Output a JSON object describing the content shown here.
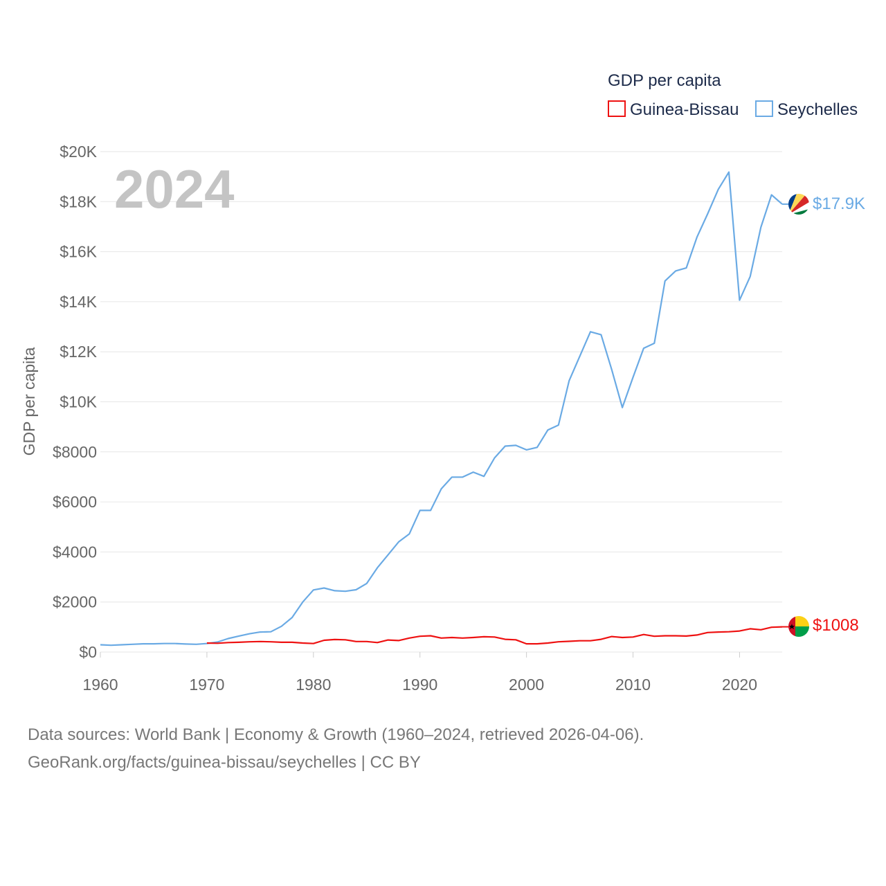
{
  "chart_data": {
    "type": "line",
    "year_display": "2024",
    "legend_title": "GDP per capita",
    "ylabel": "GDP per capita",
    "xlabel": "",
    "xlim": [
      1960,
      2024
    ],
    "ylim": [
      0,
      20000
    ],
    "x_ticks": [
      1960,
      1970,
      1980,
      1990,
      2000,
      2010,
      2020
    ],
    "x_tick_labels": [
      "1960",
      "1970",
      "1980",
      "1990",
      "2000",
      "2010",
      "2020"
    ],
    "y_ticks": [
      0,
      2000,
      4000,
      6000,
      8000,
      10000,
      12000,
      14000,
      16000,
      18000,
      20000
    ],
    "y_tick_labels": [
      "$0",
      "$2000",
      "$4000",
      "$6000",
      "$8000",
      "$10K",
      "$12K",
      "$14K",
      "$16K",
      "$18K",
      "$20K"
    ],
    "grid": true,
    "legend_position": "top-right",
    "x": [
      1960,
      1961,
      1962,
      1963,
      1964,
      1965,
      1966,
      1967,
      1968,
      1969,
      1970,
      1971,
      1972,
      1973,
      1974,
      1975,
      1976,
      1977,
      1978,
      1979,
      1980,
      1981,
      1982,
      1983,
      1984,
      1985,
      1986,
      1987,
      1988,
      1989,
      1990,
      1991,
      1992,
      1993,
      1994,
      1995,
      1996,
      1997,
      1998,
      1999,
      2000,
      2001,
      2002,
      2003,
      2004,
      2005,
      2006,
      2007,
      2008,
      2009,
      2010,
      2011,
      2012,
      2013,
      2014,
      2015,
      2016,
      2017,
      2018,
      2019,
      2020,
      2021,
      2022,
      2023,
      2024
    ],
    "series": [
      {
        "name": "Seychelles",
        "color": "#6aaae4",
        "end_label": "$17.9K",
        "flag": "seychelles",
        "values": [
          290,
          270,
          290,
          310,
          330,
          330,
          340,
          340,
          320,
          310,
          340,
          400,
          540,
          640,
          730,
          800,
          810,
          1030,
          1380,
          2000,
          2480,
          2560,
          2450,
          2430,
          2490,
          2740,
          3370,
          3880,
          4400,
          4720,
          5660,
          5660,
          6520,
          6990,
          6990,
          7190,
          7020,
          7760,
          8230,
          8260,
          8080,
          8180,
          8870,
          9070,
          10840,
          11820,
          12800,
          12680,
          11280,
          9770,
          10980,
          12140,
          12340,
          14830,
          15230,
          15350,
          16580,
          17510,
          18490,
          19180,
          14060,
          15010,
          16970,
          18270,
          17900
        ]
      },
      {
        "name": "Guinea-Bissau",
        "color": "#ee1111",
        "end_label": "$1008",
        "flag": "guinea-bissau",
        "values": [
          null,
          null,
          null,
          null,
          null,
          null,
          null,
          null,
          null,
          null,
          360,
          350,
          380,
          390,
          410,
          420,
          410,
          390,
          390,
          360,
          340,
          470,
          500,
          490,
          420,
          420,
          380,
          480,
          460,
          560,
          630,
          650,
          560,
          580,
          560,
          580,
          610,
          600,
          510,
          490,
          330,
          330,
          360,
          410,
          430,
          450,
          450,
          510,
          620,
          580,
          600,
          700,
          630,
          650,
          650,
          640,
          680,
          780,
          800,
          810,
          840,
          930,
          890,
          990,
          1008
        ]
      }
    ]
  },
  "footer": {
    "line1": "Data sources: World Bank | Economy & Growth (1960–2024, retrieved 2026-04-06).",
    "line2": "GeoRank.org/facts/guinea-bissau/seychelles | CC BY"
  }
}
